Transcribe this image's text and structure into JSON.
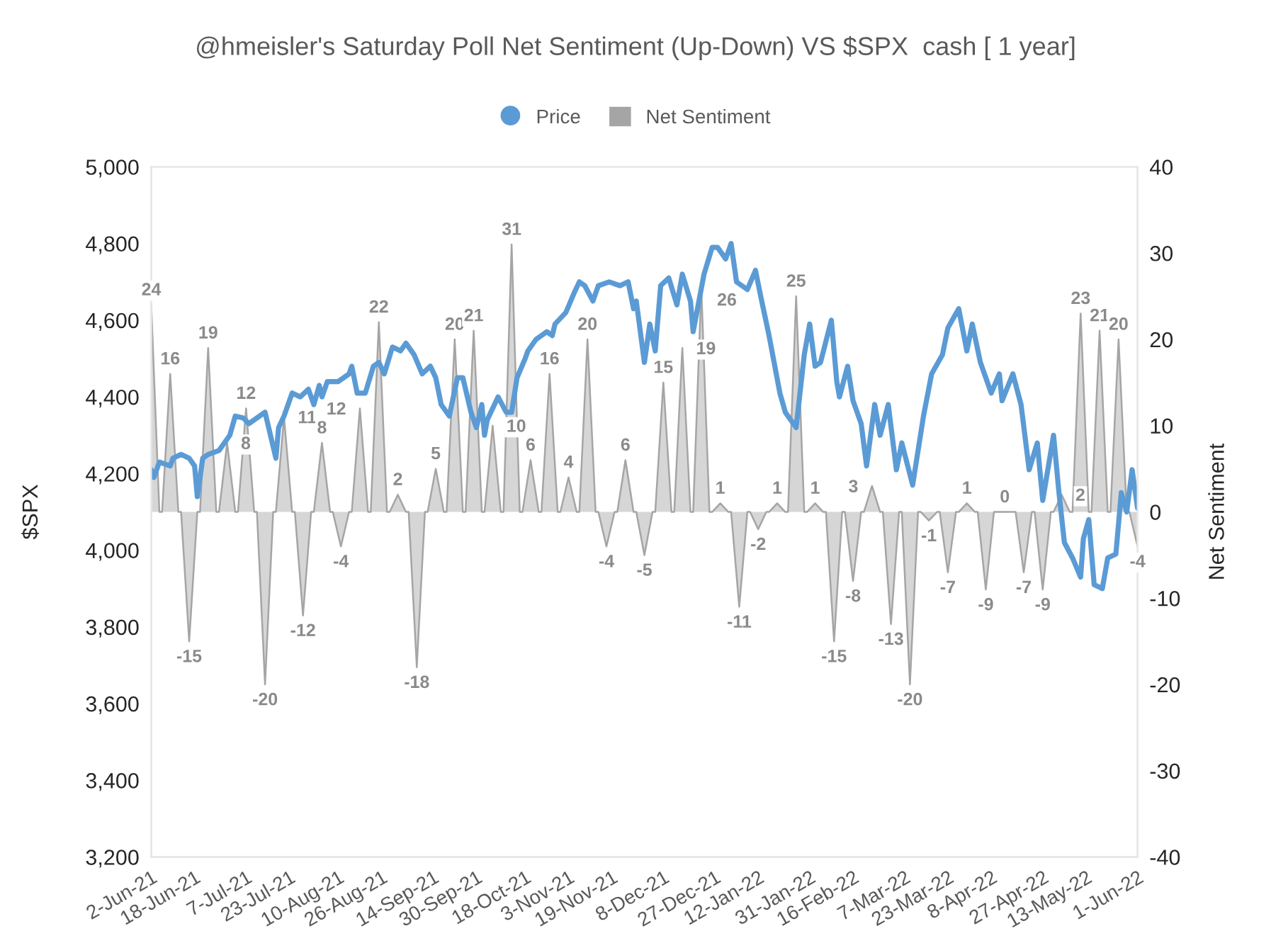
{
  "chart_data": {
    "type": "line",
    "title": "@hmeisler's Saturday Poll Net Sentiment (Up-Down) VS $SPX  cash [ 1 year]",
    "ylabel": "$SPX",
    "y2label": "Net Sentiment",
    "legend": "top",
    "xlim": [
      "2021-06-02",
      "2022-06-01"
    ],
    "xticks": [
      {
        "value": "2021-06-02",
        "label": "2-Jun-21"
      },
      {
        "value": "2021-06-18",
        "label": "18-Jun-21"
      },
      {
        "value": "2021-07-07",
        "label": "7-Jul-21"
      },
      {
        "value": "2021-07-23",
        "label": "23-Jul-21"
      },
      {
        "value": "2021-08-10",
        "label": "10-Aug-21"
      },
      {
        "value": "2021-08-26",
        "label": "26-Aug-21"
      },
      {
        "value": "2021-09-14",
        "label": "14-Sep-21"
      },
      {
        "value": "2021-09-30",
        "label": "30-Sep-21"
      },
      {
        "value": "2021-10-18",
        "label": "18-Oct-21"
      },
      {
        "value": "2021-11-03",
        "label": "3-Nov-21"
      },
      {
        "value": "2021-11-19",
        "label": "19-Nov-21"
      },
      {
        "value": "2021-12-08",
        "label": "8-Dec-21"
      },
      {
        "value": "2021-12-27",
        "label": "27-Dec-21"
      },
      {
        "value": "2022-01-12",
        "label": "12-Jan-22"
      },
      {
        "value": "2022-01-31",
        "label": "31-Jan-22"
      },
      {
        "value": "2022-02-16",
        "label": "16-Feb-22"
      },
      {
        "value": "2022-03-07",
        "label": "7-Mar-22"
      },
      {
        "value": "2022-03-23",
        "label": "23-Mar-22"
      },
      {
        "value": "2022-04-08",
        "label": "8-Apr-22"
      },
      {
        "value": "2022-04-27",
        "label": "27-Apr-22"
      },
      {
        "value": "2022-05-13",
        "label": "13-May-22"
      },
      {
        "value": "2022-06-01",
        "label": "1-Jun-22"
      }
    ],
    "ylim": [
      3200,
      5000
    ],
    "yticks": [
      {
        "value": 3200,
        "label": "3,200"
      },
      {
        "value": 3400,
        "label": "3,400"
      },
      {
        "value": 3600,
        "label": "3,600"
      },
      {
        "value": 3800,
        "label": "3,800"
      },
      {
        "value": 4000,
        "label": "4,000"
      },
      {
        "value": 4200,
        "label": "4,200"
      },
      {
        "value": 4400,
        "label": "4,400"
      },
      {
        "value": 4600,
        "label": "4,600"
      },
      {
        "value": 4800,
        "label": "4,800"
      },
      {
        "value": 5000,
        "label": "5,000"
      }
    ],
    "y2lim": [
      -40,
      40
    ],
    "y2ticks": [
      -40,
      -30,
      -20,
      -10,
      0,
      10,
      20,
      30,
      40
    ],
    "series": [
      {
        "name": "Net Sentiment",
        "type": "area",
        "axis": "y2",
        "color": "#a5a5a5",
        "x": [
          "2021-06-02",
          "2021-06-05",
          "2021-06-06",
          "2021-06-09",
          "2021-06-12",
          "2021-06-13",
          "2021-06-16",
          "2021-06-19",
          "2021-06-20",
          "2021-06-23",
          "2021-06-26",
          "2021-06-27",
          "2021-06-30",
          "2021-07-03",
          "2021-07-04",
          "2021-07-07",
          "2021-07-10",
          "2021-07-11",
          "2021-07-14",
          "2021-07-17",
          "2021-07-18",
          "2021-07-21",
          "2021-07-24",
          "2021-07-25",
          "2021-07-28",
          "2021-07-31",
          "2021-08-01",
          "2021-08-04",
          "2021-08-07",
          "2021-08-08",
          "2021-08-11",
          "2021-08-14",
          "2021-08-15",
          "2021-08-18",
          "2021-08-21",
          "2021-08-22",
          "2021-08-25",
          "2021-08-28",
          "2021-08-29",
          "2021-09-01",
          "2021-09-04",
          "2021-09-05",
          "2021-09-08",
          "2021-09-11",
          "2021-09-12",
          "2021-09-15",
          "2021-09-18",
          "2021-09-19",
          "2021-09-22",
          "2021-09-25",
          "2021-09-26",
          "2021-09-29",
          "2021-10-02",
          "2021-10-03",
          "2021-10-06",
          "2021-10-09",
          "2021-10-10",
          "2021-10-13",
          "2021-10-16",
          "2021-10-17",
          "2021-10-20",
          "2021-10-23",
          "2021-10-24",
          "2021-10-27",
          "2021-10-30",
          "2021-10-31",
          "2021-11-03",
          "2021-11-06",
          "2021-11-07",
          "2021-11-10",
          "2021-11-13",
          "2021-11-14",
          "2021-11-17",
          "2021-11-20",
          "2021-11-21",
          "2021-11-24",
          "2021-11-27",
          "2021-11-28",
          "2021-12-01",
          "2021-12-04",
          "2021-12-05",
          "2021-12-08",
          "2021-12-11",
          "2021-12-12",
          "2021-12-15",
          "2021-12-18",
          "2021-12-19",
          "2021-12-22",
          "2021-12-25",
          "2021-12-26",
          "2021-12-29",
          "2022-01-01",
          "2022-01-02",
          "2022-01-05",
          "2022-01-08",
          "2022-01-09",
          "2022-01-12",
          "2022-01-15",
          "2022-01-16",
          "2022-01-19",
          "2022-01-22",
          "2022-01-23",
          "2022-01-26",
          "2022-01-29",
          "2022-01-30",
          "2022-02-02",
          "2022-02-05",
          "2022-02-06",
          "2022-02-09",
          "2022-02-12",
          "2022-02-13",
          "2022-02-16",
          "2022-02-19",
          "2022-02-20",
          "2022-02-23",
          "2022-02-26",
          "2022-02-27",
          "2022-03-02",
          "2022-03-05",
          "2022-03-06",
          "2022-03-09",
          "2022-03-12",
          "2022-03-13",
          "2022-03-16",
          "2022-03-19",
          "2022-03-20",
          "2022-03-23",
          "2022-03-26",
          "2022-03-27",
          "2022-03-30",
          "2022-04-02",
          "2022-04-03",
          "2022-04-06",
          "2022-04-09",
          "2022-04-10",
          "2022-04-13",
          "2022-04-16",
          "2022-04-17",
          "2022-04-20",
          "2022-04-23",
          "2022-04-24",
          "2022-04-27",
          "2022-04-30",
          "2022-05-01",
          "2022-05-04",
          "2022-05-07",
          "2022-05-08",
          "2022-05-11",
          "2022-05-14",
          "2022-05-15",
          "2022-05-18",
          "2022-05-21",
          "2022-05-22",
          "2022-05-25",
          "2022-05-28",
          "2022-05-29",
          "2022-06-01"
        ],
        "values": [
          24,
          0,
          0,
          16,
          0,
          0,
          -15,
          0,
          0,
          19,
          0,
          0,
          8,
          0,
          0,
          12,
          0,
          0,
          -20,
          0,
          0,
          11,
          0,
          0,
          -12,
          0,
          0,
          8,
          0,
          0,
          -4,
          0,
          0,
          12,
          0,
          0,
          22,
          0,
          0,
          2,
          0,
          0,
          -18,
          0,
          0,
          5,
          0,
          0,
          20,
          0,
          0,
          21,
          0,
          0,
          10,
          0,
          0,
          31,
          0,
          0,
          6,
          0,
          0,
          16,
          0,
          0,
          4,
          0,
          0,
          20,
          0,
          0,
          -4,
          0,
          0,
          6,
          0,
          0,
          -5,
          0,
          0,
          15,
          0,
          0,
          19,
          0,
          0,
          26,
          0,
          0,
          1,
          0,
          0,
          -11,
          0,
          0,
          -2,
          0,
          0,
          1,
          0,
          0,
          25,
          0,
          0,
          1,
          0,
          0,
          -15,
          0,
          0,
          -8,
          0,
          0,
          3,
          0,
          0,
          -13,
          0,
          0,
          -20,
          0,
          0,
          -1,
          0,
          0,
          -7,
          0,
          0,
          1,
          0,
          0,
          -9,
          0,
          0,
          0,
          0,
          0,
          -7,
          0,
          0,
          -9,
          0,
          0,
          2,
          0,
          0,
          23,
          0,
          0,
          21,
          0,
          0,
          20,
          0,
          0,
          -4
        ],
        "value_labels": [
          "24",
          null,
          null,
          "16",
          null,
          null,
          "-15",
          null,
          null,
          "19",
          null,
          null,
          "8",
          null,
          null,
          "12",
          null,
          null,
          "-20",
          null,
          null,
          "11",
          null,
          null,
          "-12",
          null,
          null,
          "8",
          null,
          null,
          "-4",
          null,
          null,
          "12",
          null,
          null,
          "22",
          null,
          null,
          "2",
          null,
          null,
          "-18",
          null,
          null,
          "5",
          null,
          null,
          "20",
          null,
          null,
          "21",
          null,
          null,
          "10",
          null,
          null,
          "31",
          null,
          null,
          "6",
          null,
          null,
          "16",
          null,
          null,
          "4",
          null,
          null,
          "20",
          null,
          null,
          "-4",
          null,
          null,
          "6",
          null,
          null,
          "-5",
          null,
          null,
          "15",
          null,
          null,
          "19",
          null,
          null,
          "26",
          null,
          null,
          "1",
          null,
          null,
          "-11",
          null,
          null,
          "-2",
          null,
          null,
          "1",
          null,
          null,
          "25",
          null,
          null,
          "1",
          null,
          null,
          "-15",
          null,
          null,
          "-8",
          null,
          null,
          "3",
          null,
          null,
          "-13",
          null,
          null,
          "-20",
          null,
          null,
          "-1",
          null,
          null,
          "-7",
          null,
          null,
          "1",
          null,
          null,
          "-9",
          null,
          null,
          "0",
          null,
          null,
          "-7",
          null,
          null,
          "-9",
          null,
          null,
          "2",
          null,
          null,
          "23",
          null,
          null,
          "21",
          null,
          null,
          "20",
          null,
          null,
          "-4"
        ]
      },
      {
        "name": "Price",
        "axis": "y",
        "color": "#5b9bd5",
        "line_style": "solid",
        "x": [
          "2021-06-02",
          "2021-06-03",
          "2021-06-05",
          "2021-06-09",
          "2021-06-10",
          "2021-06-13",
          "2021-06-16",
          "2021-06-18",
          "2021-06-19",
          "2021-06-21",
          "2021-06-23",
          "2021-06-27",
          "2021-07-01",
          "2021-07-03",
          "2021-07-06",
          "2021-07-08",
          "2021-07-14",
          "2021-07-15",
          "2021-07-18",
          "2021-07-19",
          "2021-07-21",
          "2021-07-24",
          "2021-07-27",
          "2021-07-30",
          "2021-08-01",
          "2021-08-03",
          "2021-08-04",
          "2021-08-06",
          "2021-08-10",
          "2021-08-14",
          "2021-08-15",
          "2021-08-17",
          "2021-08-20",
          "2021-08-23",
          "2021-08-25",
          "2021-08-27",
          "2021-08-30",
          "2021-09-02",
          "2021-09-04",
          "2021-09-07",
          "2021-09-10",
          "2021-09-13",
          "2021-09-15",
          "2021-09-17",
          "2021-09-20",
          "2021-09-23",
          "2021-09-25",
          "2021-09-28",
          "2021-09-30",
          "2021-10-02",
          "2021-10-03",
          "2021-10-04",
          "2021-10-08",
          "2021-10-11",
          "2021-10-13",
          "2021-10-15",
          "2021-10-18",
          "2021-10-19",
          "2021-10-22",
          "2021-10-24",
          "2021-10-26",
          "2021-10-28",
          "2021-10-29",
          "2021-11-02",
          "2021-11-05",
          "2021-11-07",
          "2021-11-09",
          "2021-11-12",
          "2021-11-14",
          "2021-11-18",
          "2021-11-22",
          "2021-11-25",
          "2021-11-27",
          "2021-11-28",
          "2021-12-01",
          "2021-12-03",
          "2021-12-05",
          "2021-12-07",
          "2021-12-10",
          "2021-12-13",
          "2021-12-15",
          "2021-12-18",
          "2021-12-19",
          "2021-12-23",
          "2021-12-26",
          "2021-12-28",
          "2021-12-31",
          "2022-01-02",
          "2022-01-04",
          "2022-01-08",
          "2022-01-11",
          "2022-01-13",
          "2022-01-16",
          "2022-01-20",
          "2022-01-22",
          "2022-01-26",
          "2022-01-29",
          "2022-01-31",
          "2022-02-02",
          "2022-02-04",
          "2022-02-08",
          "2022-02-10",
          "2022-02-11",
          "2022-02-14",
          "2022-02-16",
          "2022-02-19",
          "2022-02-21",
          "2022-02-24",
          "2022-02-26",
          "2022-03-01",
          "2022-03-04",
          "2022-03-06",
          "2022-03-10",
          "2022-03-14",
          "2022-03-17",
          "2022-03-21",
          "2022-03-23",
          "2022-03-27",
          "2022-03-30",
          "2022-04-01",
          "2022-04-04",
          "2022-04-08",
          "2022-04-11",
          "2022-04-12",
          "2022-04-16",
          "2022-04-19",
          "2022-04-22",
          "2022-04-25",
          "2022-04-27",
          "2022-05-01",
          "2022-05-03",
          "2022-05-05",
          "2022-05-08",
          "2022-05-11",
          "2022-05-12",
          "2022-05-14",
          "2022-05-16",
          "2022-05-19",
          "2022-05-21",
          "2022-05-24",
          "2022-05-26",
          "2022-05-28",
          "2022-05-30",
          "2022-06-01"
        ],
        "values": [
          4210,
          4190,
          4230,
          4220,
          4240,
          4250,
          4240,
          4220,
          4140,
          4240,
          4250,
          4260,
          4300,
          4350,
          4345,
          4330,
          4360,
          4330,
          4240,
          4320,
          4350,
          4410,
          4400,
          4420,
          4380,
          4430,
          4400,
          4440,
          4440,
          4460,
          4480,
          4410,
          4410,
          4480,
          4490,
          4460,
          4530,
          4520,
          4540,
          4510,
          4460,
          4480,
          4450,
          4380,
          4350,
          4450,
          4450,
          4360,
          4320,
          4380,
          4300,
          4340,
          4400,
          4360,
          4360,
          4450,
          4500,
          4520,
          4550,
          4560,
          4570,
          4560,
          4590,
          4620,
          4670,
          4700,
          4690,
          4650,
          4690,
          4700,
          4690,
          4700,
          4630,
          4650,
          4490,
          4590,
          4520,
          4690,
          4710,
          4640,
          4720,
          4650,
          4570,
          4720,
          4790,
          4790,
          4760,
          4800,
          4700,
          4680,
          4730,
          4660,
          4560,
          4410,
          4360,
          4320,
          4510,
          4590,
          4480,
          4490,
          4600,
          4440,
          4400,
          4480,
          4390,
          4330,
          4220,
          4380,
          4300,
          4380,
          4210,
          4280,
          4170,
          4350,
          4460,
          4510,
          4580,
          4630,
          4520,
          4590,
          4490,
          4410,
          4460,
          4390,
          4460,
          4380,
          4210,
          4280,
          4130,
          4300,
          4150,
          4020,
          3980,
          3930,
          4030,
          4080,
          3910,
          3900,
          3980,
          3990,
          4150,
          4100,
          4210,
          4110
        ]
      }
    ]
  }
}
